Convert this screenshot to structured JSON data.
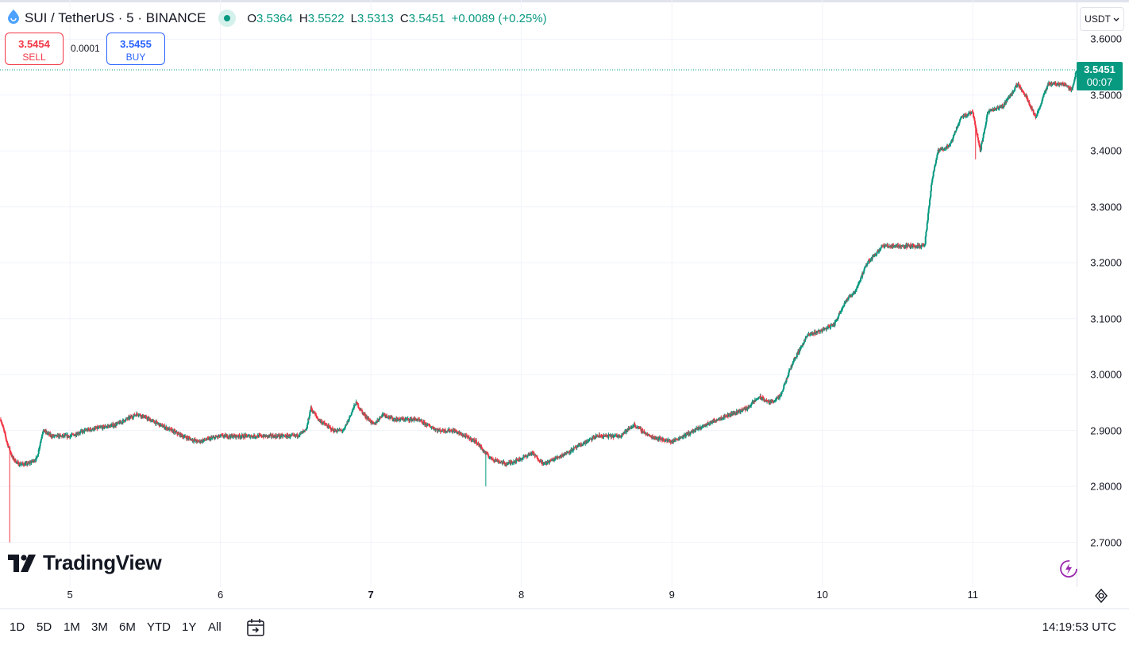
{
  "header": {
    "symbol_title": "SUI / TetherUS · 5 · BINANCE",
    "open_label": "O",
    "open_value": "3.5364",
    "high_label": "H",
    "high_value": "3.5522",
    "low_label": "L",
    "low_value": "3.5313",
    "close_label": "C",
    "close_value": "3.5451",
    "change": "+0.0089 (+0.25%)",
    "status_color": "#089981"
  },
  "trade": {
    "sell_price": "3.5454",
    "sell_label": "SELL",
    "spread": "0.0001",
    "buy_price": "3.5455",
    "buy_label": "BUY"
  },
  "currency": {
    "label": "USDT",
    "icon": "chevron-down-icon"
  },
  "last_price": {
    "value": "3.5451",
    "countdown": "00:07",
    "color": "#089981"
  },
  "logo": {
    "text": "TradingView"
  },
  "ranges": [
    "1D",
    "5D",
    "1M",
    "3M",
    "6M",
    "YTD",
    "1Y",
    "All"
  ],
  "utc_time": "14:19:53 UTC",
  "colors": {
    "up": "#089981",
    "down": "#f23645",
    "grid": "#f0f3fa"
  },
  "chart_data": {
    "type": "candlestick",
    "interval": "5",
    "y_ticks": [
      "3.6000",
      "3.5000",
      "3.4000",
      "3.3000",
      "3.2000",
      "3.1000",
      "3.0000",
      "2.9000",
      "2.8000",
      "2.7000"
    ],
    "x_ticks": [
      {
        "day": 5,
        "label": "5",
        "bold": false
      },
      {
        "day": 6,
        "label": "6",
        "bold": false
      },
      {
        "day": 7,
        "label": "7",
        "bold": true
      },
      {
        "day": 8,
        "label": "8",
        "bold": false
      },
      {
        "day": 9,
        "label": "9",
        "bold": false
      },
      {
        "day": 10,
        "label": "10",
        "bold": false
      },
      {
        "day": 11,
        "label": "11",
        "bold": false
      }
    ],
    "x_range_days": [
      4.535,
      11.69
    ],
    "y_range": [
      2.62,
      3.67
    ],
    "approx_price_path": [
      [
        4.54,
        2.92
      ],
      [
        4.58,
        2.88
      ],
      [
        4.62,
        2.85
      ],
      [
        4.66,
        2.84
      ],
      [
        4.72,
        2.84
      ],
      [
        4.78,
        2.85
      ],
      [
        4.82,
        2.9
      ],
      [
        4.88,
        2.89
      ],
      [
        5.0,
        2.89
      ],
      [
        5.1,
        2.9
      ],
      [
        5.3,
        2.91
      ],
      [
        5.45,
        2.93
      ],
      [
        5.6,
        2.91
      ],
      [
        5.75,
        2.89
      ],
      [
        5.85,
        2.88
      ],
      [
        6.0,
        2.89
      ],
      [
        6.1,
        2.89
      ],
      [
        6.2,
        2.89
      ],
      [
        6.3,
        2.89
      ],
      [
        6.5,
        2.89
      ],
      [
        6.57,
        2.9
      ],
      [
        6.6,
        2.94
      ],
      [
        6.65,
        2.92
      ],
      [
        6.75,
        2.9
      ],
      [
        6.82,
        2.9
      ],
      [
        6.9,
        2.95
      ],
      [
        6.95,
        2.93
      ],
      [
        7.02,
        2.91
      ],
      [
        7.08,
        2.93
      ],
      [
        7.15,
        2.92
      ],
      [
        7.3,
        2.92
      ],
      [
        7.45,
        2.9
      ],
      [
        7.55,
        2.9
      ],
      [
        7.7,
        2.88
      ],
      [
        7.76,
        2.86
      ],
      [
        7.8,
        2.85
      ],
      [
        7.9,
        2.84
      ],
      [
        8.0,
        2.85
      ],
      [
        8.07,
        2.86
      ],
      [
        8.15,
        2.84
      ],
      [
        8.3,
        2.86
      ],
      [
        8.5,
        2.89
      ],
      [
        8.65,
        2.89
      ],
      [
        8.75,
        2.91
      ],
      [
        8.85,
        2.89
      ],
      [
        9.0,
        2.88
      ],
      [
        9.15,
        2.9
      ],
      [
        9.3,
        2.92
      ],
      [
        9.5,
        2.94
      ],
      [
        9.58,
        2.96
      ],
      [
        9.65,
        2.95
      ],
      [
        9.72,
        2.96
      ],
      [
        9.8,
        3.02
      ],
      [
        9.9,
        3.07
      ],
      [
        10.0,
        3.08
      ],
      [
        10.08,
        3.09
      ],
      [
        10.15,
        3.13
      ],
      [
        10.22,
        3.15
      ],
      [
        10.3,
        3.2
      ],
      [
        10.4,
        3.23
      ],
      [
        10.5,
        3.23
      ],
      [
        10.6,
        3.23
      ],
      [
        10.68,
        3.23
      ],
      [
        10.73,
        3.35
      ],
      [
        10.77,
        3.4
      ],
      [
        10.85,
        3.41
      ],
      [
        10.92,
        3.46
      ],
      [
        11.0,
        3.47
      ],
      [
        11.05,
        3.4
      ],
      [
        11.1,
        3.47
      ],
      [
        11.2,
        3.48
      ],
      [
        11.3,
        3.52
      ],
      [
        11.35,
        3.5
      ],
      [
        11.42,
        3.46
      ],
      [
        11.5,
        3.52
      ],
      [
        11.6,
        3.52
      ],
      [
        11.66,
        3.51
      ],
      [
        11.69,
        3.545
      ]
    ],
    "spikes": [
      {
        "day": 4.6,
        "low": 2.7
      },
      {
        "day": 7.765,
        "low": 2.8
      },
      {
        "day": 11.02,
        "low": 3.385
      }
    ],
    "last_price": 3.5451
  }
}
